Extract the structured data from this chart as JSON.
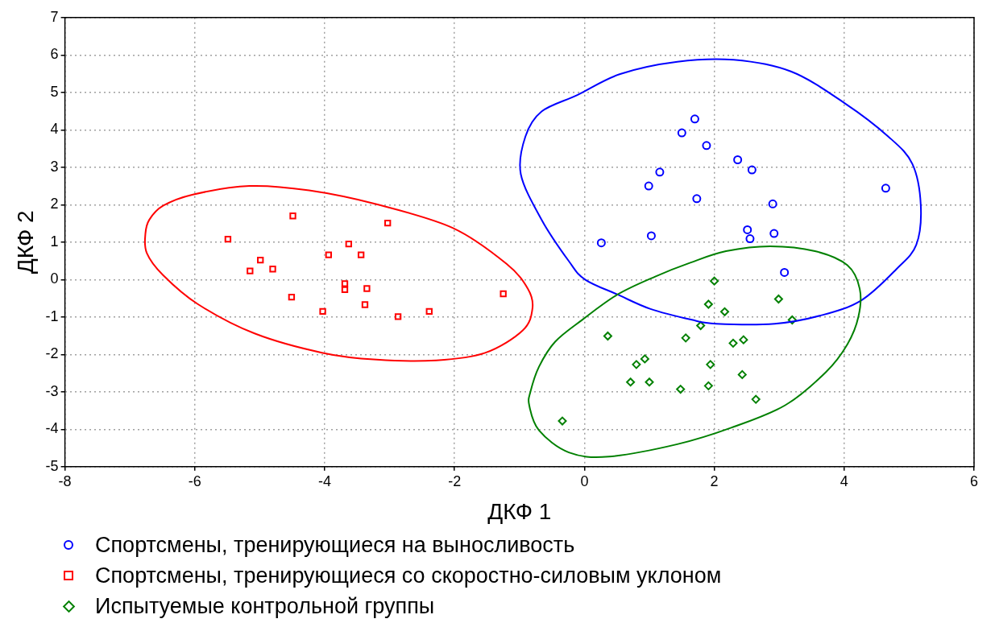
{
  "chart_data": {
    "type": "scatter",
    "xlabel": "ДКФ 1",
    "ylabel": "ДКФ 2",
    "xlim": [
      -8,
      6
    ],
    "xticks": [
      -8,
      -6,
      -4,
      -2,
      0,
      2,
      4,
      6
    ],
    "ylim": [
      -5,
      7
    ],
    "yticks": [
      -5,
      -4,
      -3,
      -2,
      -1,
      0,
      1,
      2,
      3,
      4,
      5,
      6,
      7
    ],
    "grid": true,
    "legend": "bottom",
    "series": [
      {
        "name": "Спортсмены, тренирующиеся на выносливость",
        "color": "#0000ff",
        "marker": "circle",
        "x": [
          1.7,
          1.5,
          1.88,
          2.36,
          2.58,
          1.16,
          0.99,
          1.73,
          2.9,
          4.64,
          0.26,
          1.03,
          2.51,
          2.55,
          2.92,
          3.08
        ],
        "values": [
          4.29,
          3.92,
          3.58,
          3.2,
          2.93,
          2.87,
          2.5,
          2.16,
          2.02,
          2.44,
          0.98,
          1.17,
          1.33,
          1.09,
          1.23,
          0.19
        ]
      },
      {
        "name": "Спортсмены, тренирующиеся со скоростно-силовым уклоном",
        "color": "#ff0000",
        "marker": "square",
        "x": [
          -4.49,
          -5.49,
          -3.03,
          -3.63,
          -3.94,
          -3.44,
          -4.99,
          -5.15,
          -4.8,
          -3.69,
          -3.69,
          -3.35,
          -4.51,
          -3.38,
          -4.03,
          -2.87,
          -2.39,
          -1.25
        ],
        "values": [
          1.7,
          1.08,
          1.51,
          0.95,
          0.66,
          0.66,
          0.52,
          0.23,
          0.28,
          -0.11,
          -0.27,
          -0.24,
          -0.47,
          -0.67,
          -0.85,
          -0.99,
          -0.85,
          -0.38
        ]
      },
      {
        "name": "Испытуемые контрольной группы",
        "color": "#008000",
        "marker": "diamond",
        "x": [
          2.0,
          1.91,
          2.16,
          2.99,
          3.2,
          1.79,
          0.36,
          1.56,
          2.29,
          2.45,
          0.93,
          0.8,
          1.94,
          2.43,
          0.71,
          1.0,
          1.48,
          1.91,
          2.64,
          -0.34
        ],
        "values": [
          -0.04,
          -0.66,
          -0.86,
          -0.52,
          -1.08,
          -1.23,
          -1.51,
          -1.56,
          -1.7,
          -1.61,
          -2.12,
          -2.27,
          -2.27,
          -2.54,
          -2.74,
          -2.74,
          -2.93,
          -2.84,
          -3.2,
          -3.78
        ]
      }
    ]
  }
}
